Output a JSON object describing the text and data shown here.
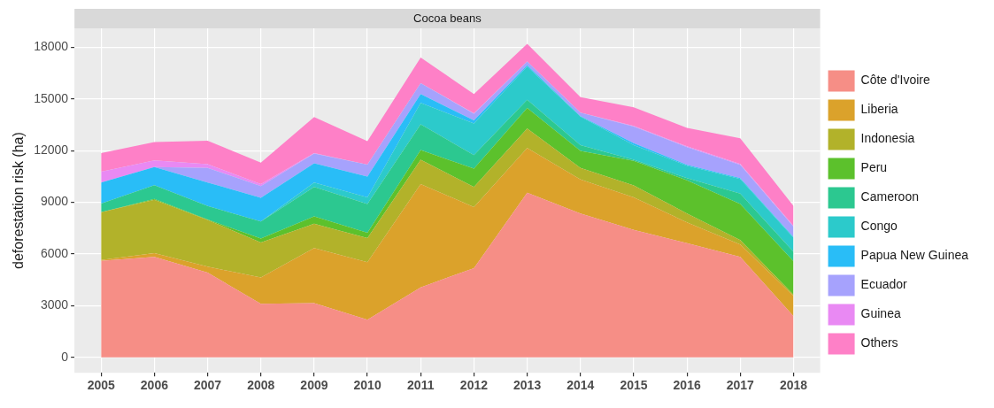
{
  "chart_data": {
    "type": "area",
    "stacked": true,
    "title": "Cocoa beans",
    "ylabel": "deforestation risk (ha)",
    "categories": [
      "2005",
      "2006",
      "2007",
      "2008",
      "2009",
      "2010",
      "2011",
      "2012",
      "2013",
      "2014",
      "2015",
      "2016",
      "2017",
      "2018"
    ],
    "ylim": [
      -900,
      19100
    ],
    "yticks": [
      0,
      3000,
      6000,
      9000,
      12000,
      15000,
      18000
    ],
    "grid": true,
    "legend": "right",
    "series": [
      {
        "name": "Côte d'Ivoire",
        "color": "#f68e86",
        "values": [
          5600,
          5830,
          4920,
          3100,
          3150,
          2180,
          4060,
          5180,
          9550,
          8350,
          7400,
          6630,
          5830,
          2380
        ]
      },
      {
        "name": "Liberia",
        "color": "#dba22b",
        "values": [
          50,
          220,
          340,
          1530,
          3190,
          3340,
          6000,
          3540,
          2600,
          1970,
          1890,
          1200,
          720,
          1170
        ]
      },
      {
        "name": "Indonesia",
        "color": "#b2b22a",
        "values": [
          2770,
          3100,
          2710,
          2040,
          1410,
          1400,
          1410,
          1170,
          1130,
          680,
          690,
          520,
          250,
          80
        ]
      },
      {
        "name": "Peru",
        "color": "#5cc12c",
        "values": [
          0,
          50,
          30,
          220,
          430,
          310,
          560,
          1060,
          1200,
          980,
          1420,
          1930,
          2100,
          1940
        ]
      },
      {
        "name": "Cameroon",
        "color": "#2cc890",
        "values": [
          510,
          790,
          780,
          990,
          1710,
          1670,
          1490,
          790,
          470,
          340,
          70,
          120,
          600,
          550
        ]
      },
      {
        "name": "Congo",
        "color": "#2ccacb",
        "values": [
          0,
          0,
          0,
          0,
          260,
          390,
          1250,
          1830,
          1930,
          1650,
          850,
          720,
          850,
          820
        ]
      },
      {
        "name": "Papua New Guinea",
        "color": "#29bdf7",
        "values": [
          1220,
          1050,
          1370,
          1380,
          1110,
          1200,
          520,
          180,
          70,
          30,
          110,
          50,
          50,
          40
        ]
      },
      {
        "name": "Ecuador",
        "color": "#a6a2fd",
        "values": [
          0,
          0,
          850,
          680,
          570,
          690,
          630,
          390,
          220,
          210,
          970,
          1030,
          770,
          600
        ]
      },
      {
        "name": "Guinea",
        "color": "#e989f3",
        "values": [
          630,
          390,
          210,
          120,
          30,
          0,
          0,
          30,
          0,
          0,
          30,
          50,
          50,
          50
        ]
      },
      {
        "name": "Others",
        "color": "#fe80c7",
        "values": [
          1080,
          1070,
          1370,
          1240,
          2090,
          1370,
          1480,
          1120,
          1030,
          890,
          1090,
          1070,
          1500,
          1150
        ]
      }
    ]
  }
}
